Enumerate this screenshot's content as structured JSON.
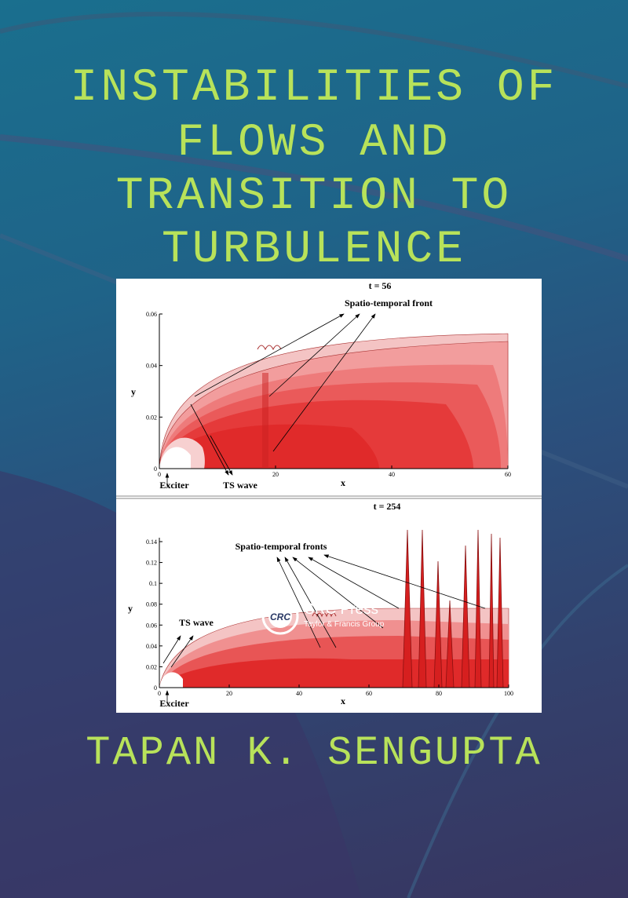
{
  "title_lines": [
    "INSTABILITIES OF",
    "FLOWS AND",
    "TRANSITION TO",
    "TURBULENCE"
  ],
  "figure": {
    "top": {
      "time_label": "t = 56",
      "annotation": "Spatio-temporal front",
      "exciter": "Exciter",
      "ts_wave": "TS wave",
      "x_label": "x",
      "y_label": "y",
      "x_ticks": [
        "0",
        "20",
        "40",
        "60"
      ],
      "y_ticks": [
        "0",
        "0.02",
        "0.04",
        "0.06"
      ]
    },
    "bottom": {
      "time_label": "t = 254",
      "annotation": "Spatio-temporal fronts",
      "exciter": "Exciter",
      "ts_wave": "TS wave",
      "x_label": "x",
      "y_label": "y",
      "x_ticks": [
        "0",
        "20",
        "40",
        "60",
        "80",
        "100"
      ],
      "y_ticks": [
        "0",
        "0.02",
        "0.04",
        "0.06",
        "0.08",
        "0.1",
        "0.12",
        "0.14"
      ]
    }
  },
  "author": "TAPAN K. SENGUPTA",
  "publisher": {
    "logo": "CRC",
    "name": "CRC Press",
    "group": "Taylor & Francis Group"
  }
}
